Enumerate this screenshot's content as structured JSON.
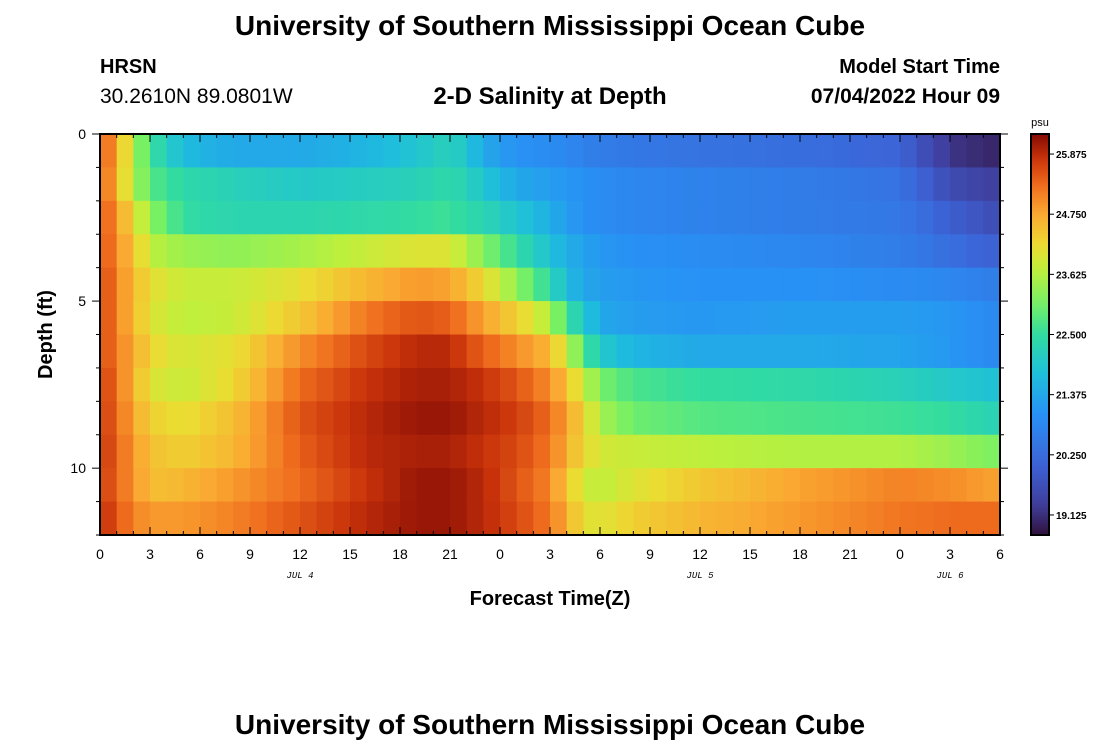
{
  "header": {
    "title": "University of Southern Mississippi Ocean Cube",
    "station": "HRSN",
    "coords": "30.2610N  89.0801W",
    "subtitle": "2-D Salinity at Depth",
    "model_label": "Model Start Time",
    "model_time": "07/04/2022 Hour 09"
  },
  "footer": {
    "title": "University of Southern Mississippi Ocean Cube"
  },
  "chart_data": {
    "type": "heatmap",
    "title": "2-D Salinity at Depth",
    "xlabel": "Forecast Time(Z)",
    "ylabel": "Depth (ft)",
    "x_range_hours": [
      0,
      54
    ],
    "y_range_ft": [
      0,
      12
    ],
    "x_tick_labels": [
      "0",
      "3",
      "6",
      "9",
      "12",
      "15",
      "18",
      "21",
      "0",
      "3",
      "6",
      "9",
      "12",
      "15",
      "18",
      "21",
      "0",
      "3",
      "6"
    ],
    "y_tick_labels": [
      "0",
      "5",
      "10"
    ],
    "y_tick_values": [
      0,
      5,
      10
    ],
    "date_labels": [
      {
        "label": "JUL 4",
        "hour": 12
      },
      {
        "label": "JUL 5",
        "hour": 36
      },
      {
        "label": "JUL 6",
        "hour": 51
      }
    ],
    "colorbar": {
      "unit": "psu",
      "min": 18.75,
      "max": 26.25,
      "tick_labels": [
        "25.875",
        "24.750",
        "23.625",
        "22.500",
        "21.375",
        "20.250",
        "19.125"
      ],
      "tick_values": [
        25.875,
        24.75,
        23.625,
        22.5,
        21.375,
        20.25,
        19.125
      ]
    },
    "columns": 54,
    "depth_layers": [
      0.5,
      1.5,
      2.5,
      3.5,
      4.5,
      5.5,
      6.5,
      7.5,
      8.5,
      9.5,
      10.5,
      11.5
    ],
    "keyframe_hours": [
      0,
      1,
      2,
      3,
      5,
      8,
      12,
      16,
      19,
      21,
      22,
      23,
      25,
      27,
      28,
      29,
      30,
      32,
      36,
      42,
      48,
      51,
      54
    ],
    "salinity_keyframes": [
      [
        25.5,
        24.8,
        23.6,
        22.6,
        21.7,
        21.4,
        21.4,
        21.6,
        21.9,
        22.2,
        21.9,
        21.4,
        21.0,
        20.9,
        20.8,
        20.7,
        20.6,
        20.5,
        20.4,
        20.3,
        20.1,
        19.2,
        19.0
      ],
      [
        25.5,
        24.6,
        23.6,
        22.8,
        22.4,
        22.2,
        22.0,
        22.1,
        22.2,
        22.4,
        22.2,
        21.9,
        21.4,
        21.2,
        21.1,
        21.0,
        20.9,
        20.8,
        20.7,
        20.6,
        20.4,
        19.6,
        19.3
      ],
      [
        25.6,
        24.9,
        24.2,
        23.3,
        22.5,
        22.3,
        22.3,
        22.4,
        22.5,
        22.6,
        22.4,
        22.3,
        21.9,
        21.5,
        21.2,
        21.0,
        20.9,
        20.8,
        20.7,
        20.6,
        20.5,
        20.0,
        19.6
      ],
      [
        25.6,
        25.0,
        24.5,
        23.7,
        23.4,
        23.3,
        23.5,
        23.8,
        24.0,
        24.0,
        23.6,
        23.2,
        22.5,
        21.8,
        21.5,
        21.3,
        21.1,
        21.0,
        20.9,
        20.8,
        20.6,
        20.3,
        20.0
      ],
      [
        25.7,
        25.1,
        24.6,
        24.1,
        23.8,
        23.8,
        24.1,
        24.6,
        24.9,
        24.8,
        24.5,
        24.2,
        23.3,
        22.4,
        21.7,
        21.4,
        21.2,
        21.1,
        21.0,
        21.0,
        20.9,
        20.8,
        20.6
      ],
      [
        25.7,
        25.1,
        24.6,
        24.0,
        23.7,
        23.8,
        24.4,
        25.2,
        25.5,
        25.4,
        25.1,
        24.8,
        24.3,
        23.6,
        22.6,
        22.0,
        21.4,
        21.2,
        21.1,
        21.2,
        21.2,
        21.1,
        20.8
      ],
      [
        25.7,
        25.1,
        24.8,
        24.2,
        23.9,
        24.1,
        25.0,
        25.6,
        25.9,
        25.9,
        25.6,
        25.4,
        25.0,
        24.6,
        23.8,
        22.8,
        22.0,
        21.6,
        21.4,
        21.4,
        21.3,
        21.1,
        20.8
      ],
      [
        25.8,
        25.2,
        24.7,
        24.0,
        23.8,
        24.2,
        25.3,
        25.8,
        26.0,
        26.0,
        25.9,
        25.8,
        25.5,
        25.0,
        24.5,
        23.8,
        23.1,
        22.7,
        22.5,
        22.4,
        22.2,
        22.0,
        21.8
      ],
      [
        25.8,
        25.3,
        24.8,
        24.3,
        24.1,
        24.5,
        25.5,
        25.9,
        26.1,
        26.1,
        26.0,
        25.9,
        25.7,
        25.3,
        24.8,
        24.3,
        23.5,
        23.0,
        22.8,
        22.7,
        22.6,
        22.5,
        22.2
      ],
      [
        25.8,
        25.4,
        24.9,
        24.5,
        24.3,
        24.6,
        25.4,
        25.9,
        26.0,
        26.0,
        25.9,
        25.8,
        25.6,
        25.2,
        24.7,
        24.2,
        23.9,
        23.8,
        23.7,
        23.6,
        23.6,
        23.4,
        23.1
      ],
      [
        25.8,
        25.3,
        25.0,
        24.5,
        24.6,
        24.9,
        25.3,
        25.8,
        26.1,
        26.1,
        26.0,
        25.9,
        25.5,
        25.1,
        24.4,
        23.9,
        23.7,
        24.0,
        24.4,
        24.8,
        25.1,
        25.0,
        24.8
      ],
      [
        25.9,
        25.5,
        25.1,
        24.9,
        24.9,
        25.1,
        25.5,
        25.9,
        26.1,
        26.1,
        26.0,
        25.9,
        25.6,
        25.2,
        24.7,
        24.1,
        24.0,
        24.3,
        24.6,
        24.9,
        25.2,
        25.3,
        25.3
      ]
    ]
  }
}
